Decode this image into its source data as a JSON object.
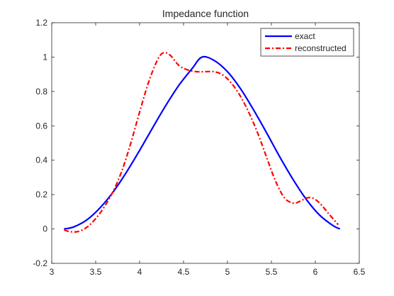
{
  "chart_data": {
    "type": "line",
    "title": "Impedance function",
    "xlabel": "",
    "ylabel": "",
    "xlim": [
      3,
      6.5
    ],
    "ylim": [
      -0.2,
      1.2
    ],
    "xticks": [
      "3",
      "3.5",
      "4",
      "4.5",
      "5",
      "5.5",
      "6",
      "6.5"
    ],
    "yticks": [
      "-0.2",
      "0",
      "0.2",
      "0.4",
      "0.6",
      "0.8",
      "1",
      "1.2"
    ],
    "grid": false,
    "legend_position": "top-right",
    "series": [
      {
        "name": "exact",
        "color": "#0000ff",
        "style": "solid",
        "x": [
          3.14,
          3.25,
          3.4,
          3.55,
          3.7,
          3.85,
          4.0,
          4.15,
          4.3,
          4.45,
          4.6,
          4.71,
          4.85,
          5.0,
          5.15,
          5.3,
          5.45,
          5.6,
          5.75,
          5.9,
          6.05,
          6.2,
          6.28
        ],
        "y": [
          0.0,
          0.012,
          0.053,
          0.123,
          0.216,
          0.33,
          0.457,
          0.59,
          0.72,
          0.838,
          0.935,
          1.0,
          0.98,
          0.915,
          0.815,
          0.69,
          0.555,
          0.415,
          0.285,
          0.17,
          0.08,
          0.02,
          0.0
        ]
      },
      {
        "name": "reconstructed",
        "color": "#ff0000",
        "style": "dashdot",
        "x": [
          3.14,
          3.2,
          3.3,
          3.4,
          3.5,
          3.6,
          3.7,
          3.8,
          3.9,
          4.0,
          4.1,
          4.2,
          4.27,
          4.35,
          4.45,
          4.55,
          4.65,
          4.75,
          4.85,
          4.95,
          5.05,
          5.15,
          5.25,
          5.35,
          5.45,
          5.55,
          5.65,
          5.75,
          5.82,
          5.9,
          5.97,
          6.05,
          6.15,
          6.26
        ],
        "y": [
          -0.005,
          -0.015,
          -0.015,
          0.01,
          0.06,
          0.13,
          0.22,
          0.34,
          0.5,
          0.68,
          0.85,
          0.98,
          1.025,
          1.01,
          0.95,
          0.925,
          0.915,
          0.915,
          0.915,
          0.895,
          0.845,
          0.77,
          0.67,
          0.55,
          0.41,
          0.275,
          0.18,
          0.15,
          0.16,
          0.18,
          0.18,
          0.15,
          0.09,
          0.025
        ]
      }
    ]
  }
}
